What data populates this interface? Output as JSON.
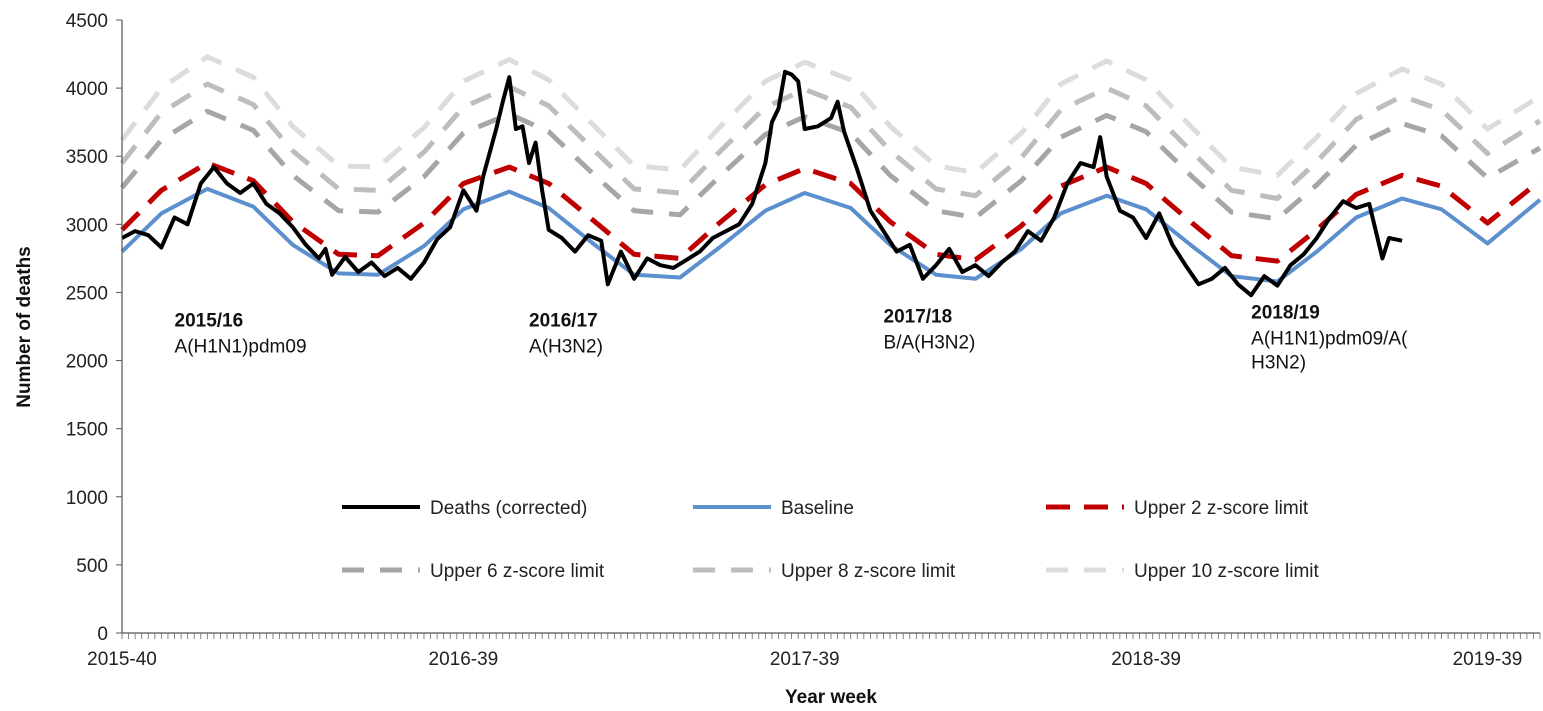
{
  "chart_data": {
    "type": "line",
    "xlabel": "Year week",
    "ylabel": "Number of deaths",
    "ylim": [
      0,
      4500
    ],
    "yticks": [
      0,
      500,
      1000,
      1500,
      2000,
      2500,
      3000,
      3500,
      4000,
      4500
    ],
    "x_range_weeks": [
      0,
      216
    ],
    "xticks": [
      {
        "label": "2015-40",
        "week": 0
      },
      {
        "label": "2016-39",
        "week": 52
      },
      {
        "label": "2017-39",
        "week": 104
      },
      {
        "label": "2018-39",
        "week": 156
      },
      {
        "label": "2019-39",
        "week": 208
      }
    ],
    "legend_placement": "bottom-center",
    "legend": [
      {
        "key": "deaths",
        "label": "Deaths (corrected)"
      },
      {
        "key": "baseline",
        "label": "Baseline"
      },
      {
        "key": "z2",
        "label": "Upper 2 z-score limit"
      },
      {
        "key": "z6",
        "label": "Upper 6 z-score limit"
      },
      {
        "key": "z8",
        "label": "Upper 8 z-score limit"
      },
      {
        "key": "z10",
        "label": "Upper 10 z-score limit"
      }
    ],
    "annotations": [
      {
        "season": "2015/16",
        "strain": [
          "A(H1N1)pdm09"
        ],
        "week": 8,
        "y": 2250
      },
      {
        "season": "2016/17",
        "strain": [
          "A(H3N2)"
        ],
        "week": 62,
        "y": 2250
      },
      {
        "season": "2017/18",
        "strain": [
          "B/A(H3N2)"
        ],
        "week": 116,
        "y": 2280
      },
      {
        "season": "2018/19",
        "strain": [
          "A(H1N1)pdm09/A(",
          "H3N2)"
        ],
        "week": 172,
        "y": 2310
      }
    ],
    "series": [
      {
        "key": "z10",
        "color": "#dcdcdc",
        "dash": "dash",
        "points": [
          [
            0,
            3620
          ],
          [
            6,
            4000
          ],
          [
            13,
            4230
          ],
          [
            20,
            4080
          ],
          [
            26,
            3720
          ],
          [
            33,
            3430
          ],
          [
            39,
            3420
          ],
          [
            46,
            3710
          ],
          [
            52,
            4050
          ],
          [
            59,
            4210
          ],
          [
            65,
            4060
          ],
          [
            72,
            3720
          ],
          [
            78,
            3430
          ],
          [
            85,
            3400
          ],
          [
            91,
            3710
          ],
          [
            98,
            4050
          ],
          [
            104,
            4190
          ],
          [
            111,
            4060
          ],
          [
            117,
            3720
          ],
          [
            124,
            3430
          ],
          [
            130,
            3380
          ],
          [
            137,
            3670
          ],
          [
            143,
            4030
          ],
          [
            150,
            4200
          ],
          [
            156,
            4060
          ],
          [
            163,
            3710
          ],
          [
            169,
            3420
          ],
          [
            176,
            3360
          ],
          [
            182,
            3640
          ],
          [
            188,
            3960
          ],
          [
            195,
            4140
          ],
          [
            201,
            4030
          ],
          [
            208,
            3700
          ],
          [
            216,
            3940
          ]
        ]
      },
      {
        "key": "z8",
        "color": "#bdbdbd",
        "dash": "dash",
        "points": [
          [
            0,
            3450
          ],
          [
            6,
            3820
          ],
          [
            13,
            4030
          ],
          [
            20,
            3880
          ],
          [
            26,
            3540
          ],
          [
            33,
            3260
          ],
          [
            39,
            3250
          ],
          [
            46,
            3530
          ],
          [
            52,
            3860
          ],
          [
            59,
            4010
          ],
          [
            65,
            3870
          ],
          [
            72,
            3540
          ],
          [
            78,
            3260
          ],
          [
            85,
            3230
          ],
          [
            91,
            3530
          ],
          [
            98,
            3860
          ],
          [
            104,
            3990
          ],
          [
            111,
            3860
          ],
          [
            117,
            3540
          ],
          [
            124,
            3260
          ],
          [
            130,
            3210
          ],
          [
            137,
            3490
          ],
          [
            143,
            3840
          ],
          [
            150,
            4000
          ],
          [
            156,
            3870
          ],
          [
            163,
            3530
          ],
          [
            169,
            3250
          ],
          [
            176,
            3190
          ],
          [
            182,
            3460
          ],
          [
            188,
            3770
          ],
          [
            195,
            3940
          ],
          [
            201,
            3840
          ],
          [
            208,
            3520
          ],
          [
            216,
            3760
          ]
        ]
      },
      {
        "key": "z6",
        "color": "#a6a6a6",
        "dash": "dash",
        "points": [
          [
            0,
            3270
          ],
          [
            6,
            3620
          ],
          [
            13,
            3830
          ],
          [
            20,
            3690
          ],
          [
            26,
            3360
          ],
          [
            33,
            3100
          ],
          [
            39,
            3090
          ],
          [
            46,
            3350
          ],
          [
            52,
            3670
          ],
          [
            59,
            3810
          ],
          [
            65,
            3680
          ],
          [
            72,
            3360
          ],
          [
            78,
            3100
          ],
          [
            85,
            3070
          ],
          [
            91,
            3350
          ],
          [
            98,
            3660
          ],
          [
            104,
            3790
          ],
          [
            111,
            3670
          ],
          [
            117,
            3360
          ],
          [
            124,
            3100
          ],
          [
            130,
            3050
          ],
          [
            137,
            3320
          ],
          [
            143,
            3640
          ],
          [
            150,
            3800
          ],
          [
            156,
            3680
          ],
          [
            163,
            3350
          ],
          [
            169,
            3090
          ],
          [
            176,
            3040
          ],
          [
            182,
            3290
          ],
          [
            188,
            3580
          ],
          [
            195,
            3740
          ],
          [
            201,
            3650
          ],
          [
            208,
            3340
          ],
          [
            216,
            3560
          ]
        ]
      },
      {
        "key": "z2",
        "color": "#c00000",
        "dash": "bigdash",
        "points": [
          [
            0,
            2960
          ],
          [
            6,
            3250
          ],
          [
            13,
            3450
          ],
          [
            20,
            3320
          ],
          [
            26,
            3020
          ],
          [
            33,
            2780
          ],
          [
            39,
            2770
          ],
          [
            46,
            3010
          ],
          [
            52,
            3300
          ],
          [
            59,
            3420
          ],
          [
            65,
            3300
          ],
          [
            72,
            3020
          ],
          [
            78,
            2780
          ],
          [
            85,
            2750
          ],
          [
            91,
            3010
          ],
          [
            98,
            3290
          ],
          [
            104,
            3410
          ],
          [
            111,
            3300
          ],
          [
            117,
            3020
          ],
          [
            124,
            2780
          ],
          [
            130,
            2740
          ],
          [
            137,
            2990
          ],
          [
            143,
            3280
          ],
          [
            150,
            3420
          ],
          [
            156,
            3300
          ],
          [
            163,
            3010
          ],
          [
            169,
            2770
          ],
          [
            176,
            2730
          ],
          [
            182,
            2960
          ],
          [
            188,
            3220
          ],
          [
            195,
            3360
          ],
          [
            201,
            3280
          ],
          [
            208,
            3010
          ],
          [
            216,
            3320
          ]
        ]
      },
      {
        "key": "baseline",
        "color": "#5b8fce",
        "dash": "solid",
        "points": [
          [
            0,
            2800
          ],
          [
            6,
            3080
          ],
          [
            13,
            3260
          ],
          [
            20,
            3130
          ],
          [
            26,
            2850
          ],
          [
            33,
            2640
          ],
          [
            39,
            2630
          ],
          [
            46,
            2840
          ],
          [
            52,
            3110
          ],
          [
            59,
            3240
          ],
          [
            65,
            3120
          ],
          [
            72,
            2850
          ],
          [
            78,
            2630
          ],
          [
            85,
            2610
          ],
          [
            91,
            2830
          ],
          [
            98,
            3100
          ],
          [
            104,
            3230
          ],
          [
            111,
            3120
          ],
          [
            117,
            2850
          ],
          [
            124,
            2630
          ],
          [
            130,
            2600
          ],
          [
            137,
            2820
          ],
          [
            143,
            3080
          ],
          [
            150,
            3210
          ],
          [
            156,
            3110
          ],
          [
            163,
            2840
          ],
          [
            169,
            2620
          ],
          [
            176,
            2580
          ],
          [
            182,
            2800
          ],
          [
            188,
            3050
          ],
          [
            195,
            3190
          ],
          [
            201,
            3110
          ],
          [
            208,
            2860
          ],
          [
            216,
            3180
          ]
        ]
      },
      {
        "key": "deaths",
        "color": "#000000",
        "dash": "solid",
        "points": [
          [
            0,
            2900
          ],
          [
            2,
            2950
          ],
          [
            4,
            2920
          ],
          [
            6,
            2830
          ],
          [
            8,
            3050
          ],
          [
            10,
            3000
          ],
          [
            12,
            3300
          ],
          [
            14,
            3420
          ],
          [
            16,
            3300
          ],
          [
            18,
            3230
          ],
          [
            20,
            3300
          ],
          [
            22,
            3150
          ],
          [
            24,
            3080
          ],
          [
            26,
            2980
          ],
          [
            28,
            2850
          ],
          [
            30,
            2750
          ],
          [
            31,
            2820
          ],
          [
            32,
            2630
          ],
          [
            34,
            2760
          ],
          [
            36,
            2650
          ],
          [
            38,
            2720
          ],
          [
            40,
            2620
          ],
          [
            42,
            2680
          ],
          [
            44,
            2600
          ],
          [
            46,
            2720
          ],
          [
            48,
            2890
          ],
          [
            50,
            2980
          ],
          [
            52,
            3250
          ],
          [
            54,
            3100
          ],
          [
            55,
            3350
          ],
          [
            57,
            3700
          ],
          [
            58,
            3900
          ],
          [
            59,
            4080
          ],
          [
            60,
            3700
          ],
          [
            61,
            3720
          ],
          [
            62,
            3450
          ],
          [
            63,
            3600
          ],
          [
            64,
            3250
          ],
          [
            65,
            2960
          ],
          [
            67,
            2900
          ],
          [
            69,
            2800
          ],
          [
            71,
            2920
          ],
          [
            73,
            2880
          ],
          [
            74,
            2560
          ],
          [
            76,
            2800
          ],
          [
            78,
            2600
          ],
          [
            80,
            2750
          ],
          [
            82,
            2700
          ],
          [
            84,
            2680
          ],
          [
            86,
            2740
          ],
          [
            88,
            2800
          ],
          [
            90,
            2900
          ],
          [
            92,
            2950
          ],
          [
            94,
            3000
          ],
          [
            96,
            3150
          ],
          [
            98,
            3450
          ],
          [
            99,
            3750
          ],
          [
            100,
            3850
          ],
          [
            101,
            4120
          ],
          [
            102,
            4100
          ],
          [
            103,
            4050
          ],
          [
            104,
            3700
          ],
          [
            106,
            3720
          ],
          [
            108,
            3780
          ],
          [
            109,
            3900
          ],
          [
            110,
            3680
          ],
          [
            112,
            3400
          ],
          [
            114,
            3100
          ],
          [
            116,
            2950
          ],
          [
            118,
            2800
          ],
          [
            120,
            2850
          ],
          [
            122,
            2600
          ],
          [
            124,
            2700
          ],
          [
            126,
            2820
          ],
          [
            128,
            2650
          ],
          [
            130,
            2700
          ],
          [
            132,
            2620
          ],
          [
            134,
            2720
          ],
          [
            136,
            2800
          ],
          [
            138,
            2950
          ],
          [
            140,
            2880
          ],
          [
            142,
            3050
          ],
          [
            144,
            3300
          ],
          [
            146,
            3450
          ],
          [
            148,
            3420
          ],
          [
            149,
            3640
          ],
          [
            150,
            3350
          ],
          [
            152,
            3100
          ],
          [
            154,
            3050
          ],
          [
            156,
            2900
          ],
          [
            158,
            3080
          ],
          [
            160,
            2850
          ],
          [
            162,
            2700
          ],
          [
            164,
            2560
          ],
          [
            166,
            2600
          ],
          [
            168,
            2680
          ],
          [
            170,
            2560
          ],
          [
            172,
            2480
          ],
          [
            174,
            2620
          ],
          [
            176,
            2550
          ],
          [
            178,
            2700
          ],
          [
            180,
            2780
          ],
          [
            182,
            2900
          ],
          [
            184,
            3050
          ],
          [
            186,
            3170
          ],
          [
            188,
            3120
          ],
          [
            190,
            3150
          ],
          [
            192,
            2750
          ],
          [
            193,
            2900
          ],
          [
            195,
            2880
          ]
        ]
      }
    ]
  }
}
